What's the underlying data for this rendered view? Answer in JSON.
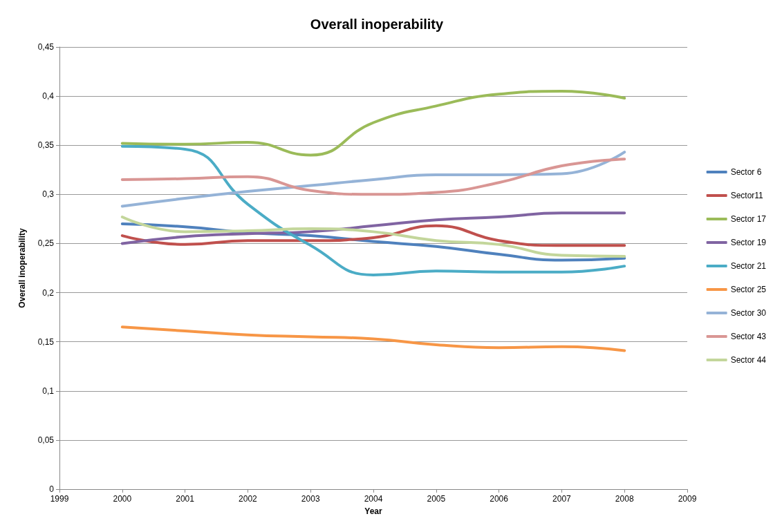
{
  "chart_data": {
    "type": "line",
    "title": "Overall inoperability",
    "xlabel": "Year",
    "ylabel": "Overall inoperability",
    "x": [
      2000,
      2001,
      2002,
      2003,
      2004,
      2005,
      2006,
      2007,
      2008
    ],
    "xlim": [
      1999,
      2009
    ],
    "xticks": [
      1999,
      2000,
      2001,
      2002,
      2003,
      2004,
      2005,
      2006,
      2007,
      2008,
      2009
    ],
    "ylim": [
      0,
      0.45
    ],
    "yticks": [
      0,
      {
        "value": 0.05,
        "label": "0,05"
      },
      {
        "value": 0.1,
        "label": "0,1"
      },
      {
        "value": 0.15,
        "label": "0,15"
      },
      {
        "value": 0.2,
        "label": "0,2"
      },
      {
        "value": 0.25,
        "label": "0,25"
      },
      {
        "value": 0.3,
        "label": "0,3"
      },
      {
        "value": 0.35,
        "label": "0,35"
      },
      {
        "value": 0.4,
        "label": "0,4"
      },
      {
        "value": 0.45,
        "label": "0,45"
      }
    ],
    "grid": "y",
    "legend": "right",
    "marker": "none",
    "line_style": "solid",
    "series": [
      {
        "name": "Sector 6",
        "color": "#4f81bd",
        "values": [
          0.27,
          0.267,
          0.261,
          0.258,
          0.252,
          0.247,
          0.239,
          0.233,
          0.235
        ]
      },
      {
        "name": "Sector11",
        "color": "#c0504d",
        "values": [
          0.258,
          0.249,
          0.253,
          0.253,
          0.256,
          0.268,
          0.253,
          0.248,
          0.248
        ]
      },
      {
        "name": "Sector 17",
        "color": "#9bbb59",
        "values": [
          0.352,
          0.351,
          0.353,
          0.34,
          0.373,
          0.39,
          0.402,
          0.405,
          0.398
        ]
      },
      {
        "name": "Sector 19",
        "color": "#8064a2",
        "values": [
          0.25,
          0.257,
          0.26,
          0.262,
          0.268,
          0.274,
          0.277,
          0.281,
          0.281
        ]
      },
      {
        "name": "Sector 21",
        "color": "#4bacc6",
        "values": [
          0.349,
          0.346,
          0.29,
          0.248,
          0.218,
          0.222,
          0.221,
          0.221,
          0.227
        ]
      },
      {
        "name": "Sector 25",
        "color": "#f79646",
        "values": [
          0.165,
          0.161,
          0.157,
          0.155,
          0.153,
          0.147,
          0.144,
          0.145,
          0.141
        ]
      },
      {
        "name": "Sector 30",
        "color": "#95b3d7",
        "values": [
          0.288,
          0.296,
          0.303,
          0.309,
          0.315,
          0.32,
          0.32,
          0.321,
          0.343
        ]
      },
      {
        "name": "Sector 43",
        "color": "#d99694",
        "values": [
          0.315,
          0.316,
          0.318,
          0.304,
          0.3,
          0.302,
          0.312,
          0.329,
          0.336
        ]
      },
      {
        "name": "Sector 44",
        "color": "#c3d69b",
        "values": [
          0.277,
          0.262,
          0.263,
          0.265,
          0.262,
          0.253,
          0.249,
          0.238,
          0.237
        ]
      }
    ]
  }
}
